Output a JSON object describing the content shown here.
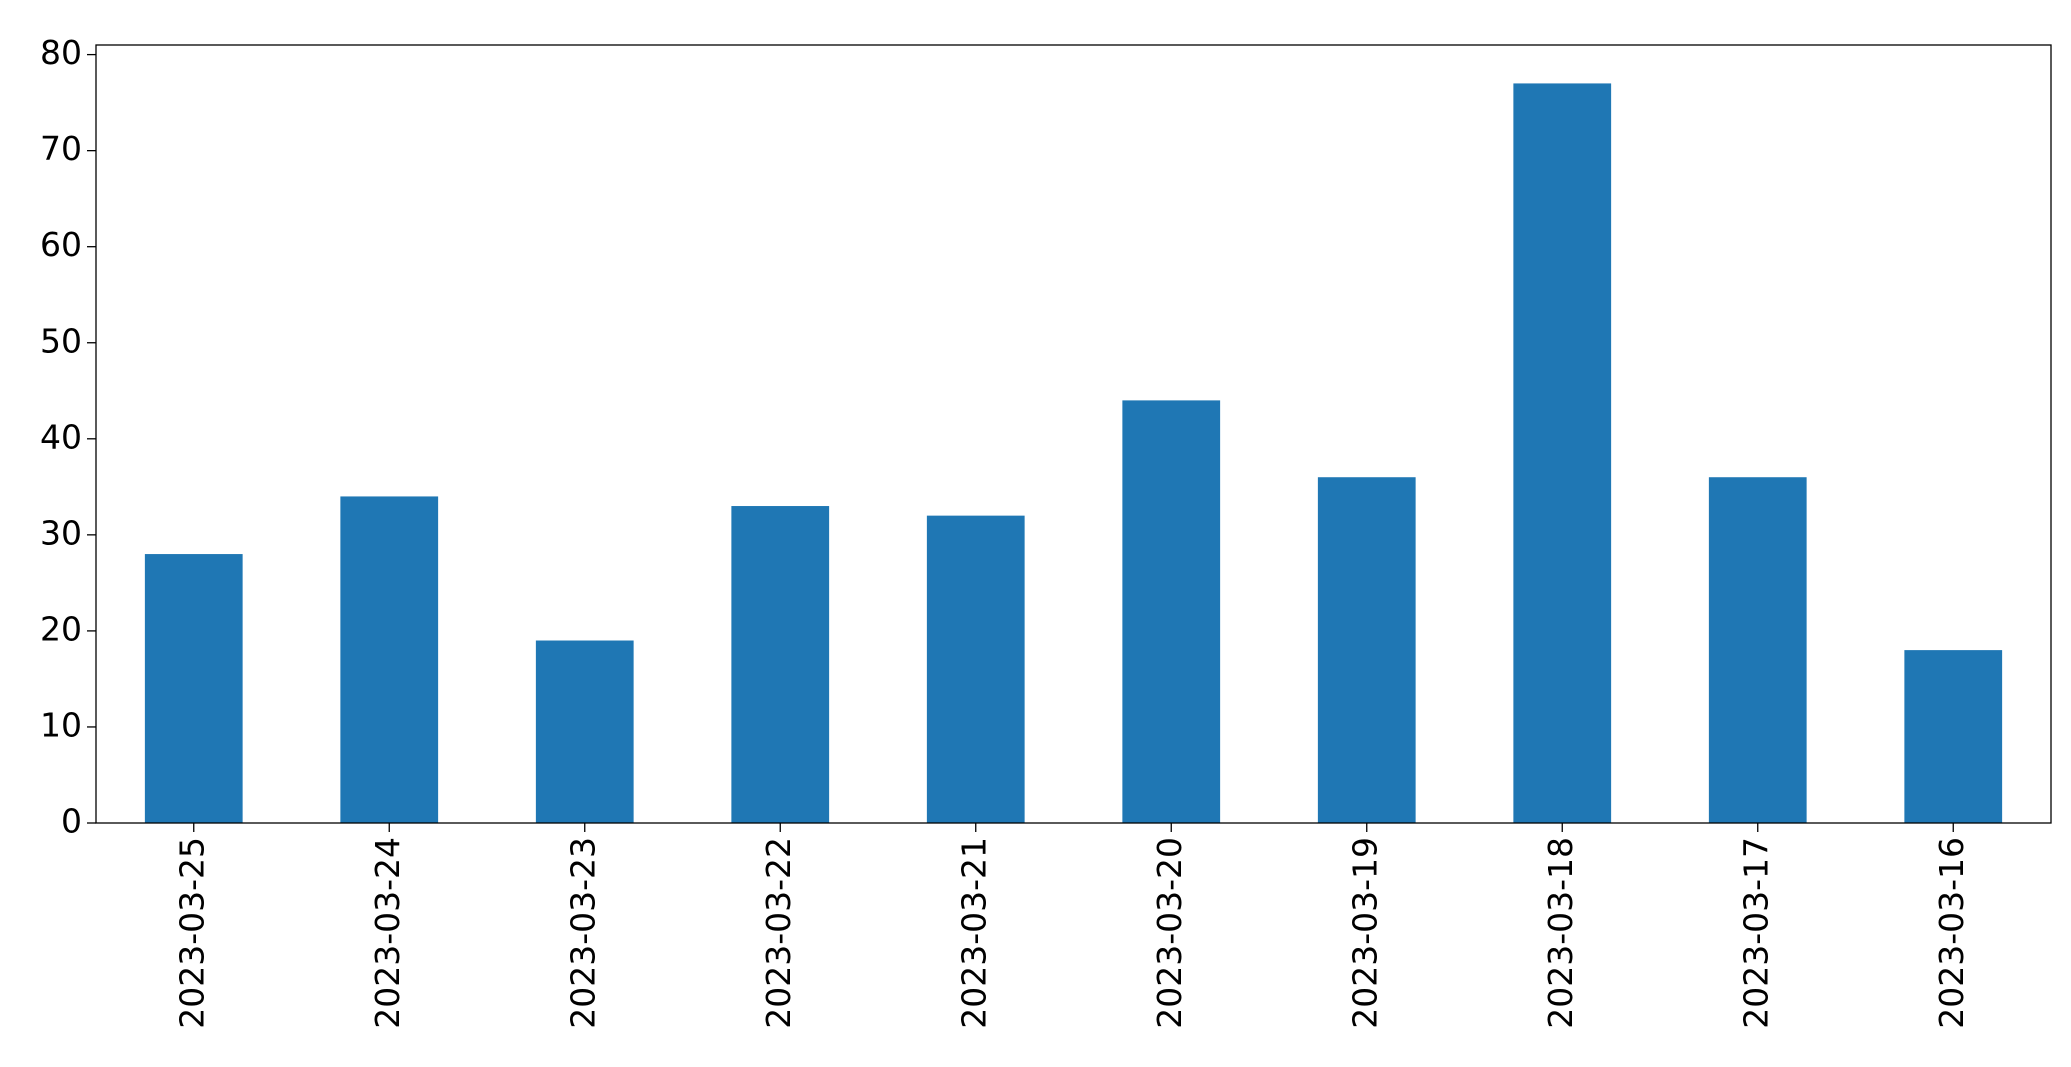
{
  "chart_data": {
    "type": "bar",
    "categories": [
      "2023-03-25",
      "2023-03-24",
      "2023-03-23",
      "2023-03-22",
      "2023-03-21",
      "2023-03-20",
      "2023-03-19",
      "2023-03-18",
      "2023-03-17",
      "2023-03-16"
    ],
    "values": [
      28,
      34,
      19,
      33,
      32,
      44,
      36,
      77,
      36,
      18
    ],
    "color": "#1f77b4",
    "ylim": [
      0,
      81
    ],
    "yticks": [
      0,
      10,
      20,
      30,
      40,
      50,
      60,
      70,
      80
    ],
    "grid": false
  }
}
